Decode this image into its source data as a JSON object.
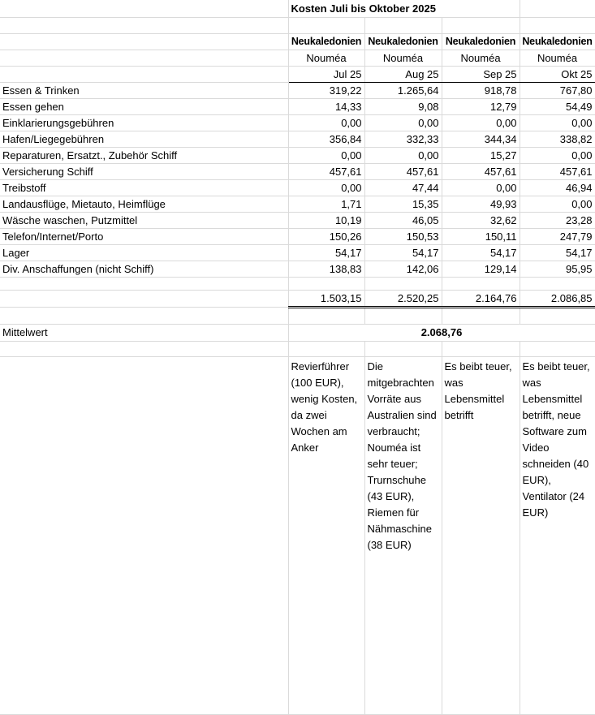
{
  "title": "Kosten Juli bis Oktober 2025",
  "columns": [
    {
      "country": "Neukaledonien",
      "city": "Nouméa",
      "month": "Jul 25"
    },
    {
      "country": "Neukaledonien",
      "city": "Nouméa",
      "month": "Aug 25"
    },
    {
      "country": "Neukaledonien",
      "city": "Nouméa",
      "month": "Sep 25"
    },
    {
      "country": "Neukaledonien",
      "city": "Nouméa",
      "month": "Okt 25"
    }
  ],
  "rows": [
    {
      "label": "Essen & Trinken",
      "values": [
        "319,22",
        "1.265,64",
        "918,78",
        "767,80"
      ]
    },
    {
      "label": "Essen gehen",
      "values": [
        "14,33",
        "9,08",
        "12,79",
        "54,49"
      ]
    },
    {
      "label": "Einklarierungsgebühren",
      "values": [
        "0,00",
        "0,00",
        "0,00",
        "0,00"
      ]
    },
    {
      "label": "Hafen/Liegegebühren",
      "values": [
        "356,84",
        "332,33",
        "344,34",
        "338,82"
      ]
    },
    {
      "label": "Reparaturen, Ersatzt., Zubehör Schiff",
      "values": [
        "0,00",
        "0,00",
        "15,27",
        "0,00"
      ]
    },
    {
      "label": "Versicherung Schiff",
      "values": [
        "457,61",
        "457,61",
        "457,61",
        "457,61"
      ]
    },
    {
      "label": "Treibstoff",
      "values": [
        "0,00",
        "47,44",
        "0,00",
        "46,94"
      ]
    },
    {
      "label": "Landausflüge, Mietauto, Heimflüge",
      "values": [
        "1,71",
        "15,35",
        "49,93",
        "0,00"
      ]
    },
    {
      "label": "Wäsche waschen, Putzmittel",
      "values": [
        "10,19",
        "46,05",
        "32,62",
        "23,28"
      ]
    },
    {
      "label": "Telefon/Internet/Porto",
      "values": [
        "150,26",
        "150,53",
        "150,11",
        "247,79"
      ]
    },
    {
      "label": "Lager",
      "values": [
        "54,17",
        "54,17",
        "54,17",
        "54,17"
      ]
    },
    {
      "label": "Div. Anschaffungen (nicht Schiff)",
      "values": [
        "138,83",
        "142,06",
        "129,14",
        "95,95"
      ]
    }
  ],
  "totals": [
    "1.503,15",
    "2.520,25",
    "2.164,76",
    "2.086,85"
  ],
  "average": {
    "label": "Mittelwert",
    "value": "2.068,76"
  },
  "comments": [
    "Revierführer (100 EUR), wenig Kosten, da zwei Wochen am Anker",
    "Die mitgebrachten Vorräte aus Australien sind verbraucht; Nouméa ist sehr teuer; Trurnschuhe (43 EUR), Riemen für Nähmaschine (38 EUR)",
    "Es beibt teuer, was Lebensmittel betrifft",
    "Es beibt teuer, was Lebensmittel betrifft, neue Software zum Video schneiden (40 EUR), Ventilator (24 EUR)"
  ]
}
